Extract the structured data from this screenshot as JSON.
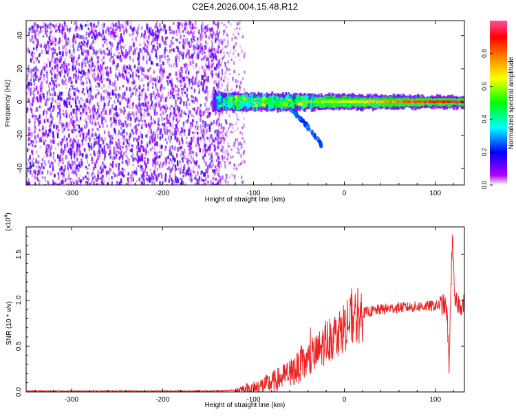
{
  "chart_data": [
    {
      "type": "heatmap",
      "title": "C2E4.2026.004.15.48.R12",
      "xlabel": "Height of straight line (km)",
      "ylabel": "Frequency (Hz)",
      "xlim": [
        -350,
        132
      ],
      "ylim": [
        -50,
        49
      ],
      "x_ticks": [
        -300,
        -200,
        -100,
        0,
        100
      ],
      "y_ticks": [
        -40,
        -20,
        0,
        20,
        40
      ],
      "colorbar": {
        "label": "Normalized spectral amplitude",
        "range": [
          0,
          1
        ],
        "ticks": [
          "0.0",
          "0.2",
          "0.4",
          "0.6",
          "0.8"
        ],
        "colors": [
          "#ffffff",
          "#b000ff",
          "#0000ff",
          "#00ffff",
          "#00ff00",
          "#ffff00",
          "#ff8000",
          "#ff0000",
          "#ff4fa0"
        ]
      },
      "regions": [
        {
          "name": "noise",
          "x_range": [
            -350,
            -140
          ],
          "freq_range": [
            -50,
            49
          ],
          "amplitude": 0.15
        },
        {
          "name": "noise fade",
          "x_range": [
            -140,
            -110
          ],
          "freq_range": [
            -50,
            49
          ],
          "amplitude": 0.05
        },
        {
          "name": "signal",
          "x_range": [
            -145,
            132
          ],
          "freq_center": 0,
          "amplitude_start": 0.25,
          "amplitude_end": 0.95
        },
        {
          "name": "branch",
          "x_range": [
            -60,
            -25
          ],
          "freq_from": -5,
          "freq_to": -26,
          "amplitude": 0.2
        }
      ]
    },
    {
      "type": "line",
      "title": "",
      "xlabel": "Height of straight line (km)",
      "ylabel": "SNR (10 * v/v)",
      "y_multiplier": "(x10",
      "y_multiplier_exp": "4",
      "xlim": [
        -350,
        132
      ],
      "ylim": [
        0,
        1.8
      ],
      "x_ticks": [
        -300,
        -200,
        -100,
        0,
        100
      ],
      "y_ticks": [
        "0.0",
        "0.5",
        "1.0",
        "1.5"
      ],
      "series_color": "#ee2222",
      "series": [
        {
          "x": [
            -350,
            -200,
            -140,
            -120,
            -100,
            -80,
            -60,
            -50,
            -40,
            -30,
            -20,
            -10,
            0,
            10,
            20,
            40,
            60,
            80,
            100,
            110,
            113,
            115,
            117,
            119,
            121,
            125,
            132
          ],
          "y": [
            0.01,
            0.01,
            0.01,
            0.02,
            0.04,
            0.1,
            0.2,
            0.27,
            0.33,
            0.42,
            0.55,
            0.62,
            0.72,
            0.8,
            0.86,
            0.9,
            0.92,
            0.93,
            0.94,
            0.95,
            0.85,
            0.25,
            1.05,
            1.8,
            0.97,
            0.96,
            0.95
          ]
        }
      ]
    }
  ]
}
